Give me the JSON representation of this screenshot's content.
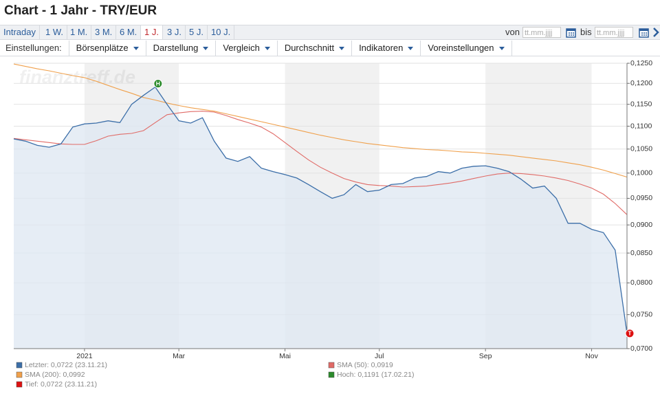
{
  "header": {
    "title": "Chart - 1 Jahr - TRY/EUR"
  },
  "toolbar": {
    "periods": [
      "Intraday",
      "1 W.",
      "1 M.",
      "3 M.",
      "6 M.",
      "1 J.",
      "3 J.",
      "5 J.",
      "10 J."
    ],
    "from_label": "von",
    "from_placeholder": "tt.mm.jjjj",
    "to_label": "bis",
    "to_placeholder": "tt.mm.jjjj"
  },
  "settings": {
    "label": "Einstellungen:",
    "menus": [
      "Börsenplätze",
      "Darstellung",
      "Vergleich",
      "Durchschnitt",
      "Indikatoren",
      "Voreinstellungen"
    ]
  },
  "chart_data": {
    "type": "line",
    "watermark": "finanztreff.de",
    "categories": [
      null,
      null,
      null,
      null,
      null,
      null,
      "2021",
      null,
      null,
      null,
      null,
      null,
      null,
      null,
      "Mar",
      null,
      null,
      null,
      null,
      null,
      null,
      null,
      null,
      "Mai",
      null,
      null,
      null,
      null,
      null,
      null,
      null,
      "Jul",
      null,
      null,
      null,
      null,
      null,
      null,
      null,
      null,
      "Sep",
      null,
      null,
      null,
      null,
      null,
      null,
      null,
      null,
      "Nov",
      null,
      null,
      null
    ],
    "series": [
      {
        "name": "Letzter: 0,0722 (23.11.21)",
        "color": "#3b6ea8",
        "fill": "#dde7f2",
        "values": [
          0.1072,
          0.1067,
          0.1058,
          0.1054,
          0.1061,
          0.1098,
          0.1105,
          0.1107,
          0.1112,
          0.1108,
          0.115,
          0.1171,
          0.1191,
          0.115,
          0.1112,
          0.1107,
          0.1119,
          0.1067,
          0.1031,
          0.1024,
          0.1034,
          0.101,
          0.1003,
          0.0997,
          0.099,
          0.0977,
          0.0963,
          0.095,
          0.0957,
          0.0977,
          0.0963,
          0.0966,
          0.0977,
          0.0979,
          0.099,
          0.0993,
          0.1003,
          0.1,
          0.101,
          0.1014,
          0.1015,
          0.101,
          0.1003,
          0.0988,
          0.097,
          0.0974,
          0.095,
          0.0903,
          0.0903,
          0.0892,
          0.0886,
          0.0855,
          0.0722
        ]
      },
      {
        "name": "SMA (50): 0,0919",
        "color": "#e06a66",
        "values": [
          0.1073,
          0.107,
          0.1067,
          0.1064,
          0.1061,
          0.106,
          0.106,
          0.1068,
          0.1078,
          0.1082,
          0.1084,
          0.109,
          0.1108,
          0.1126,
          0.113,
          0.1133,
          0.1134,
          0.1132,
          0.1124,
          0.1115,
          0.1107,
          0.1098,
          0.1083,
          0.1064,
          0.1045,
          0.1027,
          0.1012,
          0.1,
          0.0989,
          0.0982,
          0.0977,
          0.0975,
          0.0974,
          0.0972,
          0.0973,
          0.0974,
          0.0977,
          0.098,
          0.0984,
          0.0989,
          0.0994,
          0.0998,
          0.1,
          0.0999,
          0.0997,
          0.0994,
          0.099,
          0.0985,
          0.0978,
          0.097,
          0.0958,
          0.094,
          0.0919
        ]
      },
      {
        "name": "SMA (200): 0,0992",
        "color": "#f0a04b",
        "values": [
          0.1248,
          0.1242,
          0.1236,
          0.1231,
          0.1225,
          0.1219,
          0.1214,
          0.1205,
          0.1195,
          0.1185,
          0.1176,
          0.1166,
          0.116,
          0.1153,
          0.1147,
          0.1142,
          0.1138,
          0.1134,
          0.1128,
          0.1122,
          0.1116,
          0.111,
          0.1104,
          0.1098,
          0.1092,
          0.1086,
          0.108,
          0.1075,
          0.107,
          0.1066,
          0.1062,
          0.1059,
          0.1056,
          0.1053,
          0.1051,
          0.1049,
          0.1048,
          0.1046,
          0.1044,
          0.1043,
          0.1041,
          0.1039,
          0.1037,
          0.1034,
          0.1031,
          0.1028,
          0.1025,
          0.1021,
          0.1017,
          0.1012,
          0.1006,
          0.0999,
          0.0992
        ]
      }
    ],
    "extrema": {
      "high_marker": "H",
      "high_color": "#2b8a2b",
      "high_legend": "Hoch: 0,1191 (17.02.21)",
      "low_marker": "T",
      "low_color": "#dd1111",
      "low_legend": "Tief: 0,0722 (23.11.21)"
    },
    "ylim": [
      0.07,
      0.125
    ],
    "log_scale": true,
    "grid": true,
    "yticks": [
      {
        "value": 0.07,
        "label": "0,0700"
      },
      {
        "value": 0.075,
        "label": "0,0750"
      },
      {
        "value": 0.08,
        "label": "0,0800"
      },
      {
        "value": 0.085,
        "label": "0,0850"
      },
      {
        "value": 0.09,
        "label": "0,0900"
      },
      {
        "value": 0.095,
        "label": "0,0950"
      },
      {
        "value": 0.1,
        "label": "0,1000"
      },
      {
        "value": 0.105,
        "label": "0,1050"
      },
      {
        "value": 0.11,
        "label": "0,1100"
      },
      {
        "value": 0.115,
        "label": "0,1150"
      },
      {
        "value": 0.12,
        "label": "0,1200"
      },
      {
        "value": 0.125,
        "label": "0,1250"
      }
    ]
  }
}
